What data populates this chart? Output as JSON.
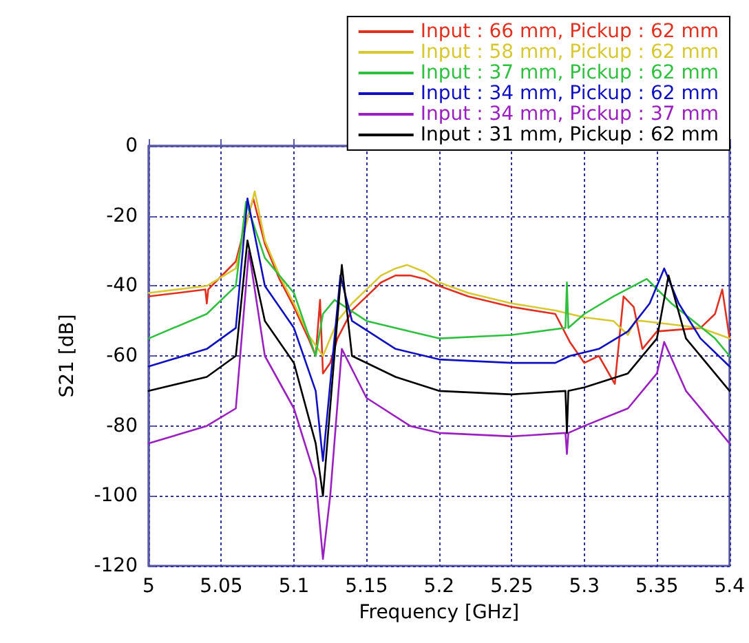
{
  "chart_data": {
    "type": "line",
    "xlabel": "Frequency [GHz]",
    "ylabel": "S21 [dB]",
    "xlim": [
      5,
      5.4
    ],
    "xticks": [
      5,
      5.05,
      5.1,
      5.15,
      5.2,
      5.25,
      5.3,
      5.35,
      5.4
    ],
    "ylim": [
      -120,
      0
    ],
    "yticks": [
      -120,
      -100,
      -80,
      -60,
      -40,
      -20,
      0
    ],
    "grid": true,
    "legend": "top right",
    "marker": "none",
    "line_style": "solid",
    "series": [
      {
        "name": "Input : 66 mm, Pickup : 62 mm",
        "color": "#e03020",
        "x": [
          5,
          5.02,
          5.039,
          5.04,
          5.041,
          5.06,
          5.065,
          5.072,
          5.08,
          5.09,
          5.1,
          5.11,
          5.115,
          5.118,
          5.12,
          5.125,
          5.13,
          5.14,
          5.15,
          5.16,
          5.17,
          5.18,
          5.19,
          5.2,
          5.22,
          5.25,
          5.28,
          5.29,
          5.3,
          5.31,
          5.321,
          5.327,
          5.334,
          5.34,
          5.35,
          5.38,
          5.39,
          5.395,
          5.4
        ],
        "values": [
          -43,
          -42,
          -41,
          -45,
          -41,
          -33,
          -25,
          -15,
          -28,
          -38,
          -46,
          -55,
          -60,
          -44,
          -65,
          -62,
          -55,
          -47,
          -43,
          -39,
          -37,
          -37,
          -38,
          -40,
          -43,
          -46,
          -48,
          -56,
          -62,
          -60,
          -68,
          -43,
          -46,
          -58,
          -53,
          -52,
          -48,
          -41,
          -55
        ]
      },
      {
        "name": "Input : 58 mm, Pickup : 62 mm",
        "color": "#d8c830",
        "x": [
          5,
          5.04,
          5.06,
          5.065,
          5.073,
          5.08,
          5.09,
          5.1,
          5.11,
          5.12,
          5.125,
          5.13,
          5.14,
          5.15,
          5.16,
          5.17,
          5.178,
          5.19,
          5.2,
          5.22,
          5.25,
          5.28,
          5.3,
          5.32,
          5.33,
          5.335,
          5.34,
          5.36,
          5.38,
          5.4
        ],
        "values": [
          -42,
          -40,
          -35,
          -26,
          -13,
          -27,
          -37,
          -45,
          -54,
          -60,
          -55,
          -50,
          -45,
          -41,
          -37,
          -35,
          -34,
          -36,
          -39,
          -42,
          -45,
          -47,
          -49,
          -50,
          -54,
          -50,
          -50,
          -51,
          -52,
          -55
        ]
      },
      {
        "name": "Input : 37 mm, Pickup : 62 mm",
        "color": "#30c040",
        "x": [
          5,
          5.04,
          5.06,
          5.067,
          5.08,
          5.1,
          5.115,
          5.12,
          5.128,
          5.15,
          5.18,
          5.2,
          5.25,
          5.287,
          5.288,
          5.289,
          5.3,
          5.32,
          5.343,
          5.36,
          5.39,
          5.4
        ],
        "values": [
          -55,
          -48,
          -40,
          -16,
          -32,
          -42,
          -60,
          -48,
          -44,
          -50,
          -53,
          -55,
          -54,
          -52,
          -39,
          -52,
          -48,
          -43,
          -38,
          -45,
          -55,
          -60
        ]
      },
      {
        "name": "Input : 34 mm, Pickup : 62 mm",
        "color": "#1010c0",
        "x": [
          5,
          5.04,
          5.06,
          5.068,
          5.08,
          5.1,
          5.115,
          5.12,
          5.132,
          5.14,
          5.17,
          5.2,
          5.25,
          5.28,
          5.29,
          5.31,
          5.33,
          5.345,
          5.355,
          5.365,
          5.38,
          5.4
        ],
        "values": [
          -63,
          -58,
          -52,
          -15,
          -40,
          -52,
          -70,
          -90,
          -37,
          -50,
          -58,
          -61,
          -62,
          -62,
          -60,
          -58,
          -53,
          -45,
          -35,
          -45,
          -55,
          -63
        ]
      },
      {
        "name": "Input : 34 mm, Pickup : 37 mm",
        "color": "#9a20c0",
        "x": [
          5,
          5.04,
          5.06,
          5.069,
          5.08,
          5.1,
          5.115,
          5.12,
          5.125,
          5.133,
          5.15,
          5.18,
          5.2,
          5.25,
          5.287,
          5.288,
          5.289,
          5.3,
          5.33,
          5.35,
          5.355,
          5.37,
          5.39,
          5.4
        ],
        "values": [
          -85,
          -80,
          -75,
          -30,
          -60,
          -75,
          -95,
          -118,
          -100,
          -58,
          -72,
          -80,
          -82,
          -83,
          -82,
          -88,
          -82,
          -80,
          -75,
          -65,
          -56,
          -70,
          -80,
          -85
        ]
      },
      {
        "name": "Input : 31 mm, Pickup : 62 mm",
        "color": "#000000",
        "x": [
          5,
          5.04,
          5.06,
          5.068,
          5.08,
          5.1,
          5.115,
          5.12,
          5.133,
          5.14,
          5.17,
          5.2,
          5.25,
          5.287,
          5.288,
          5.289,
          5.3,
          5.33,
          5.35,
          5.358,
          5.37,
          5.39,
          5.4
        ],
        "values": [
          -70,
          -66,
          -60,
          -27,
          -50,
          -62,
          -85,
          -100,
          -34,
          -60,
          -66,
          -70,
          -71,
          -70,
          -82,
          -70,
          -69,
          -65,
          -55,
          -37,
          -55,
          -65,
          -70
        ]
      }
    ]
  }
}
